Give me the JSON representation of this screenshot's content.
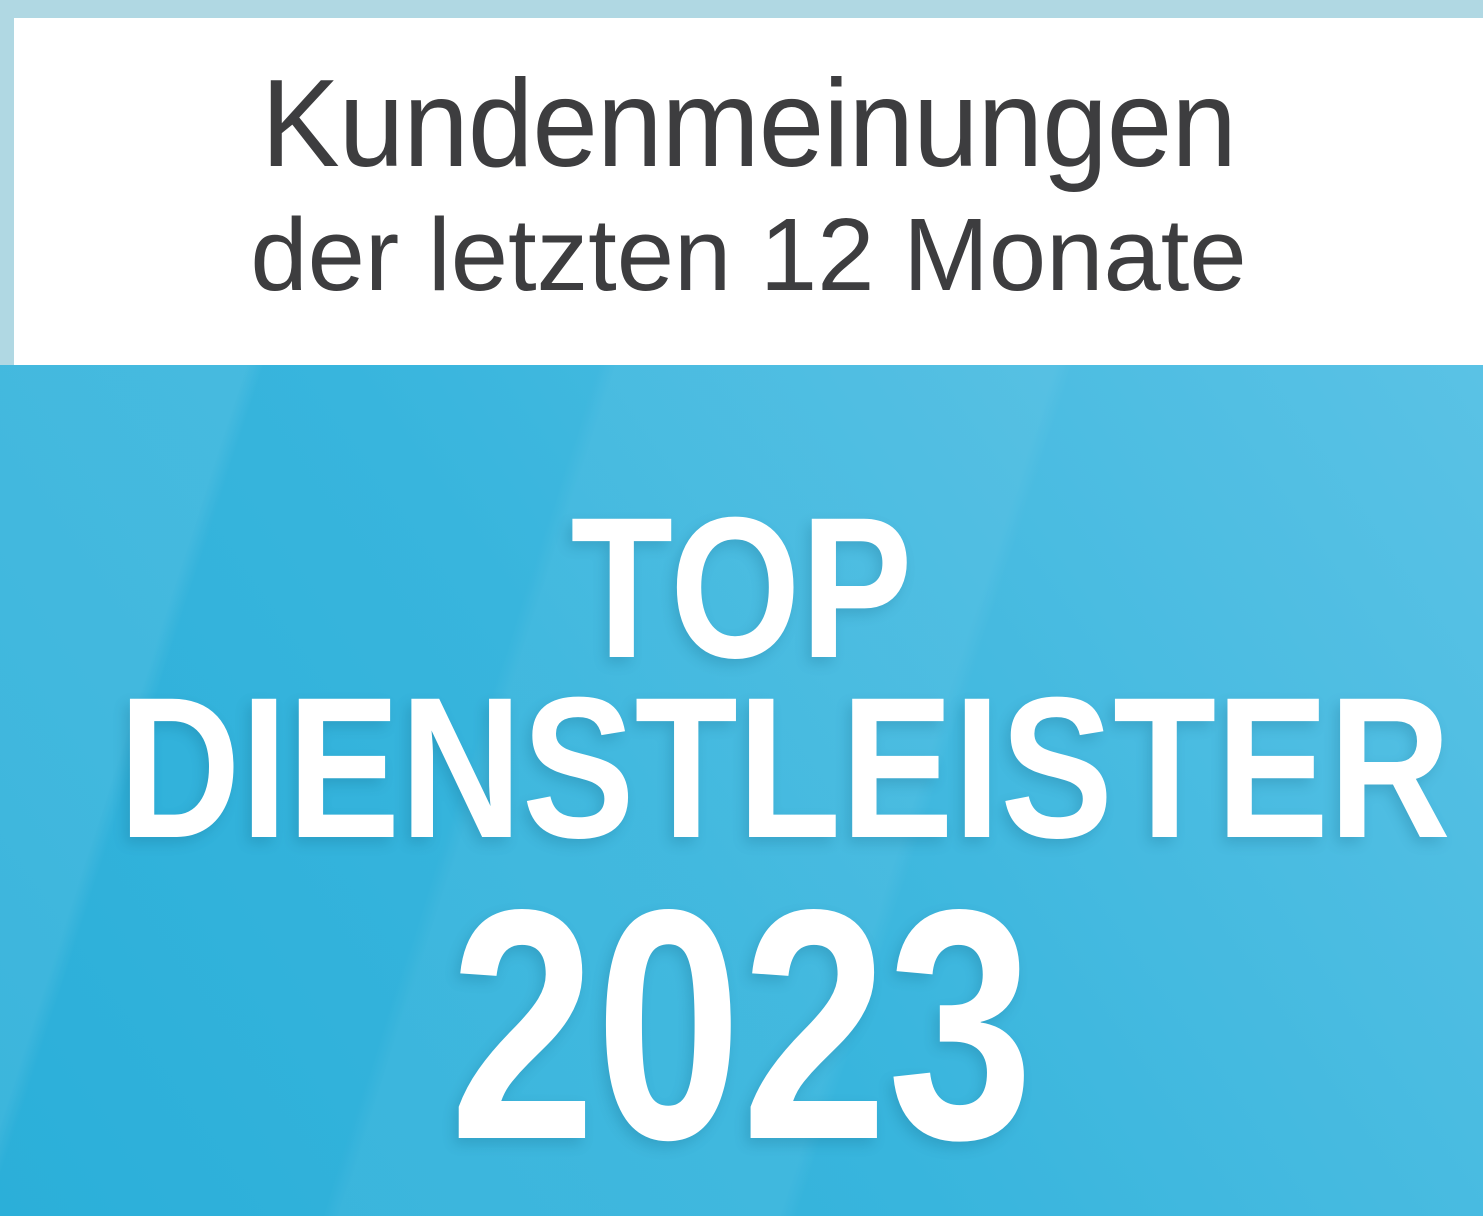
{
  "header": {
    "line1": "Kundenmeinungen",
    "line2": "der letzten 12 Monate"
  },
  "award": {
    "line1": "TOP",
    "line2": "DIENSTLEISTER",
    "year": "2023"
  },
  "colors": {
    "frame_light_blue": "#b0d8e3",
    "panel_white": "#ffffff",
    "header_text_gray": "#3d3d3f",
    "body_blue_dark": "#2bafd9",
    "body_blue_light": "#5ac2e5",
    "body_text_white": "#ffffff"
  }
}
